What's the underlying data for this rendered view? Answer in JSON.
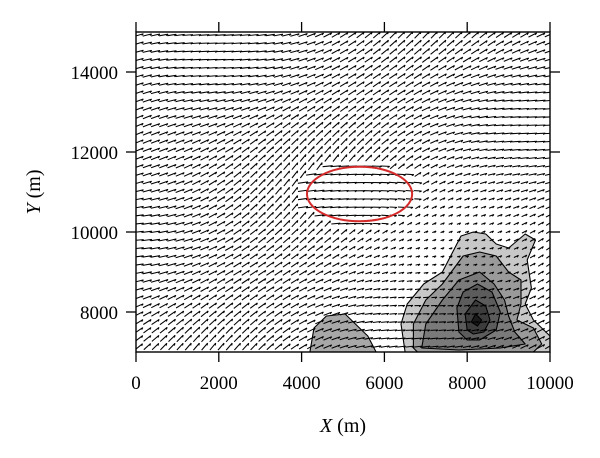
{
  "chart_data": {
    "type": "vector-field-contour",
    "xlabel_var": "X",
    "xlabel_unit": "(m)",
    "ylabel_var": "Y",
    "ylabel_unit": "(m)",
    "xlim": [
      0,
      10000
    ],
    "ylim": [
      7000,
      15000
    ],
    "x_ticks": [
      0,
      2000,
      4000,
      6000,
      8000,
      10000
    ],
    "x_tick_labels": [
      "0",
      "2000",
      "4000",
      "6000",
      "8000",
      "10000"
    ],
    "y_ticks": [
      8000,
      10000,
      12000,
      14000
    ],
    "y_tick_labels": [
      "8000",
      "10000",
      "12000",
      "14000"
    ],
    "grid": false,
    "wind_field_color": "#000000",
    "contours": [
      {
        "name": "level-1",
        "fill": "#c8c8c8",
        "shape": [
          [
            6500,
            7000
          ],
          [
            6400,
            7700
          ],
          [
            6550,
            8200
          ],
          [
            6950,
            8700
          ],
          [
            7400,
            9000
          ],
          [
            7850,
            9900
          ],
          [
            8150,
            10000
          ],
          [
            8450,
            9950
          ],
          [
            8700,
            9700
          ],
          [
            9000,
            9600
          ],
          [
            9400,
            9950
          ],
          [
            9650,
            9800
          ],
          [
            9450,
            9300
          ],
          [
            9550,
            8600
          ],
          [
            9400,
            8200
          ],
          [
            9600,
            7800
          ],
          [
            10000,
            7400
          ],
          [
            10000,
            7000
          ]
        ]
      },
      {
        "name": "level-1b",
        "fill": "#a8a8a8",
        "shape": [
          [
            4200,
            7000
          ],
          [
            4300,
            7600
          ],
          [
            4600,
            7900
          ],
          [
            5050,
            7950
          ],
          [
            5300,
            7700
          ],
          [
            5600,
            7400
          ],
          [
            5800,
            7000
          ]
        ]
      },
      {
        "name": "level-2",
        "fill": "#9a9a9a",
        "shape": [
          [
            6700,
            7100
          ],
          [
            6700,
            7700
          ],
          [
            7000,
            8300
          ],
          [
            7400,
            8700
          ],
          [
            7900,
            9400
          ],
          [
            8300,
            9500
          ],
          [
            8700,
            9400
          ],
          [
            9000,
            9000
          ],
          [
            9300,
            8800
          ],
          [
            9300,
            8200
          ],
          [
            9200,
            7800
          ],
          [
            9600,
            7600
          ],
          [
            9800,
            7200
          ],
          [
            9600,
            7000
          ],
          [
            6800,
            7000
          ]
        ]
      },
      {
        "name": "level-3",
        "fill": "#7a7a7a",
        "shape": [
          [
            6900,
            7100
          ],
          [
            7000,
            7700
          ],
          [
            7400,
            8300
          ],
          [
            7800,
            8800
          ],
          [
            8300,
            9000
          ],
          [
            8650,
            8700
          ],
          [
            8900,
            8300
          ],
          [
            9000,
            7900
          ],
          [
            9150,
            7500
          ],
          [
            9400,
            7200
          ],
          [
            8800,
            7100
          ],
          [
            7800,
            7050
          ]
        ]
      },
      {
        "name": "level-4",
        "fill": "#5c5c5c",
        "shape": [
          [
            7800,
            7500
          ],
          [
            7750,
            8100
          ],
          [
            7900,
            8500
          ],
          [
            8250,
            8700
          ],
          [
            8600,
            8500
          ],
          [
            8800,
            8000
          ],
          [
            8700,
            7550
          ],
          [
            8300,
            7300
          ],
          [
            8000,
            7300
          ]
        ]
      },
      {
        "name": "level-5",
        "fill": "#3c3c3c",
        "shape": [
          [
            8000,
            7550
          ],
          [
            7950,
            7950
          ],
          [
            8200,
            8300
          ],
          [
            8450,
            8150
          ],
          [
            8550,
            7800
          ],
          [
            8400,
            7500
          ],
          [
            8150,
            7450
          ]
        ]
      },
      {
        "name": "level-6",
        "fill": "#1a1a1a",
        "shape": [
          [
            8100,
            7750
          ],
          [
            8200,
            7950
          ],
          [
            8350,
            7800
          ],
          [
            8250,
            7650
          ]
        ]
      }
    ],
    "annotations": [
      {
        "type": "ellipse",
        "color": "#d42a2a",
        "cx": 5400,
        "cy": 10950,
        "rx": 1270,
        "ry": 680
      }
    ]
  }
}
